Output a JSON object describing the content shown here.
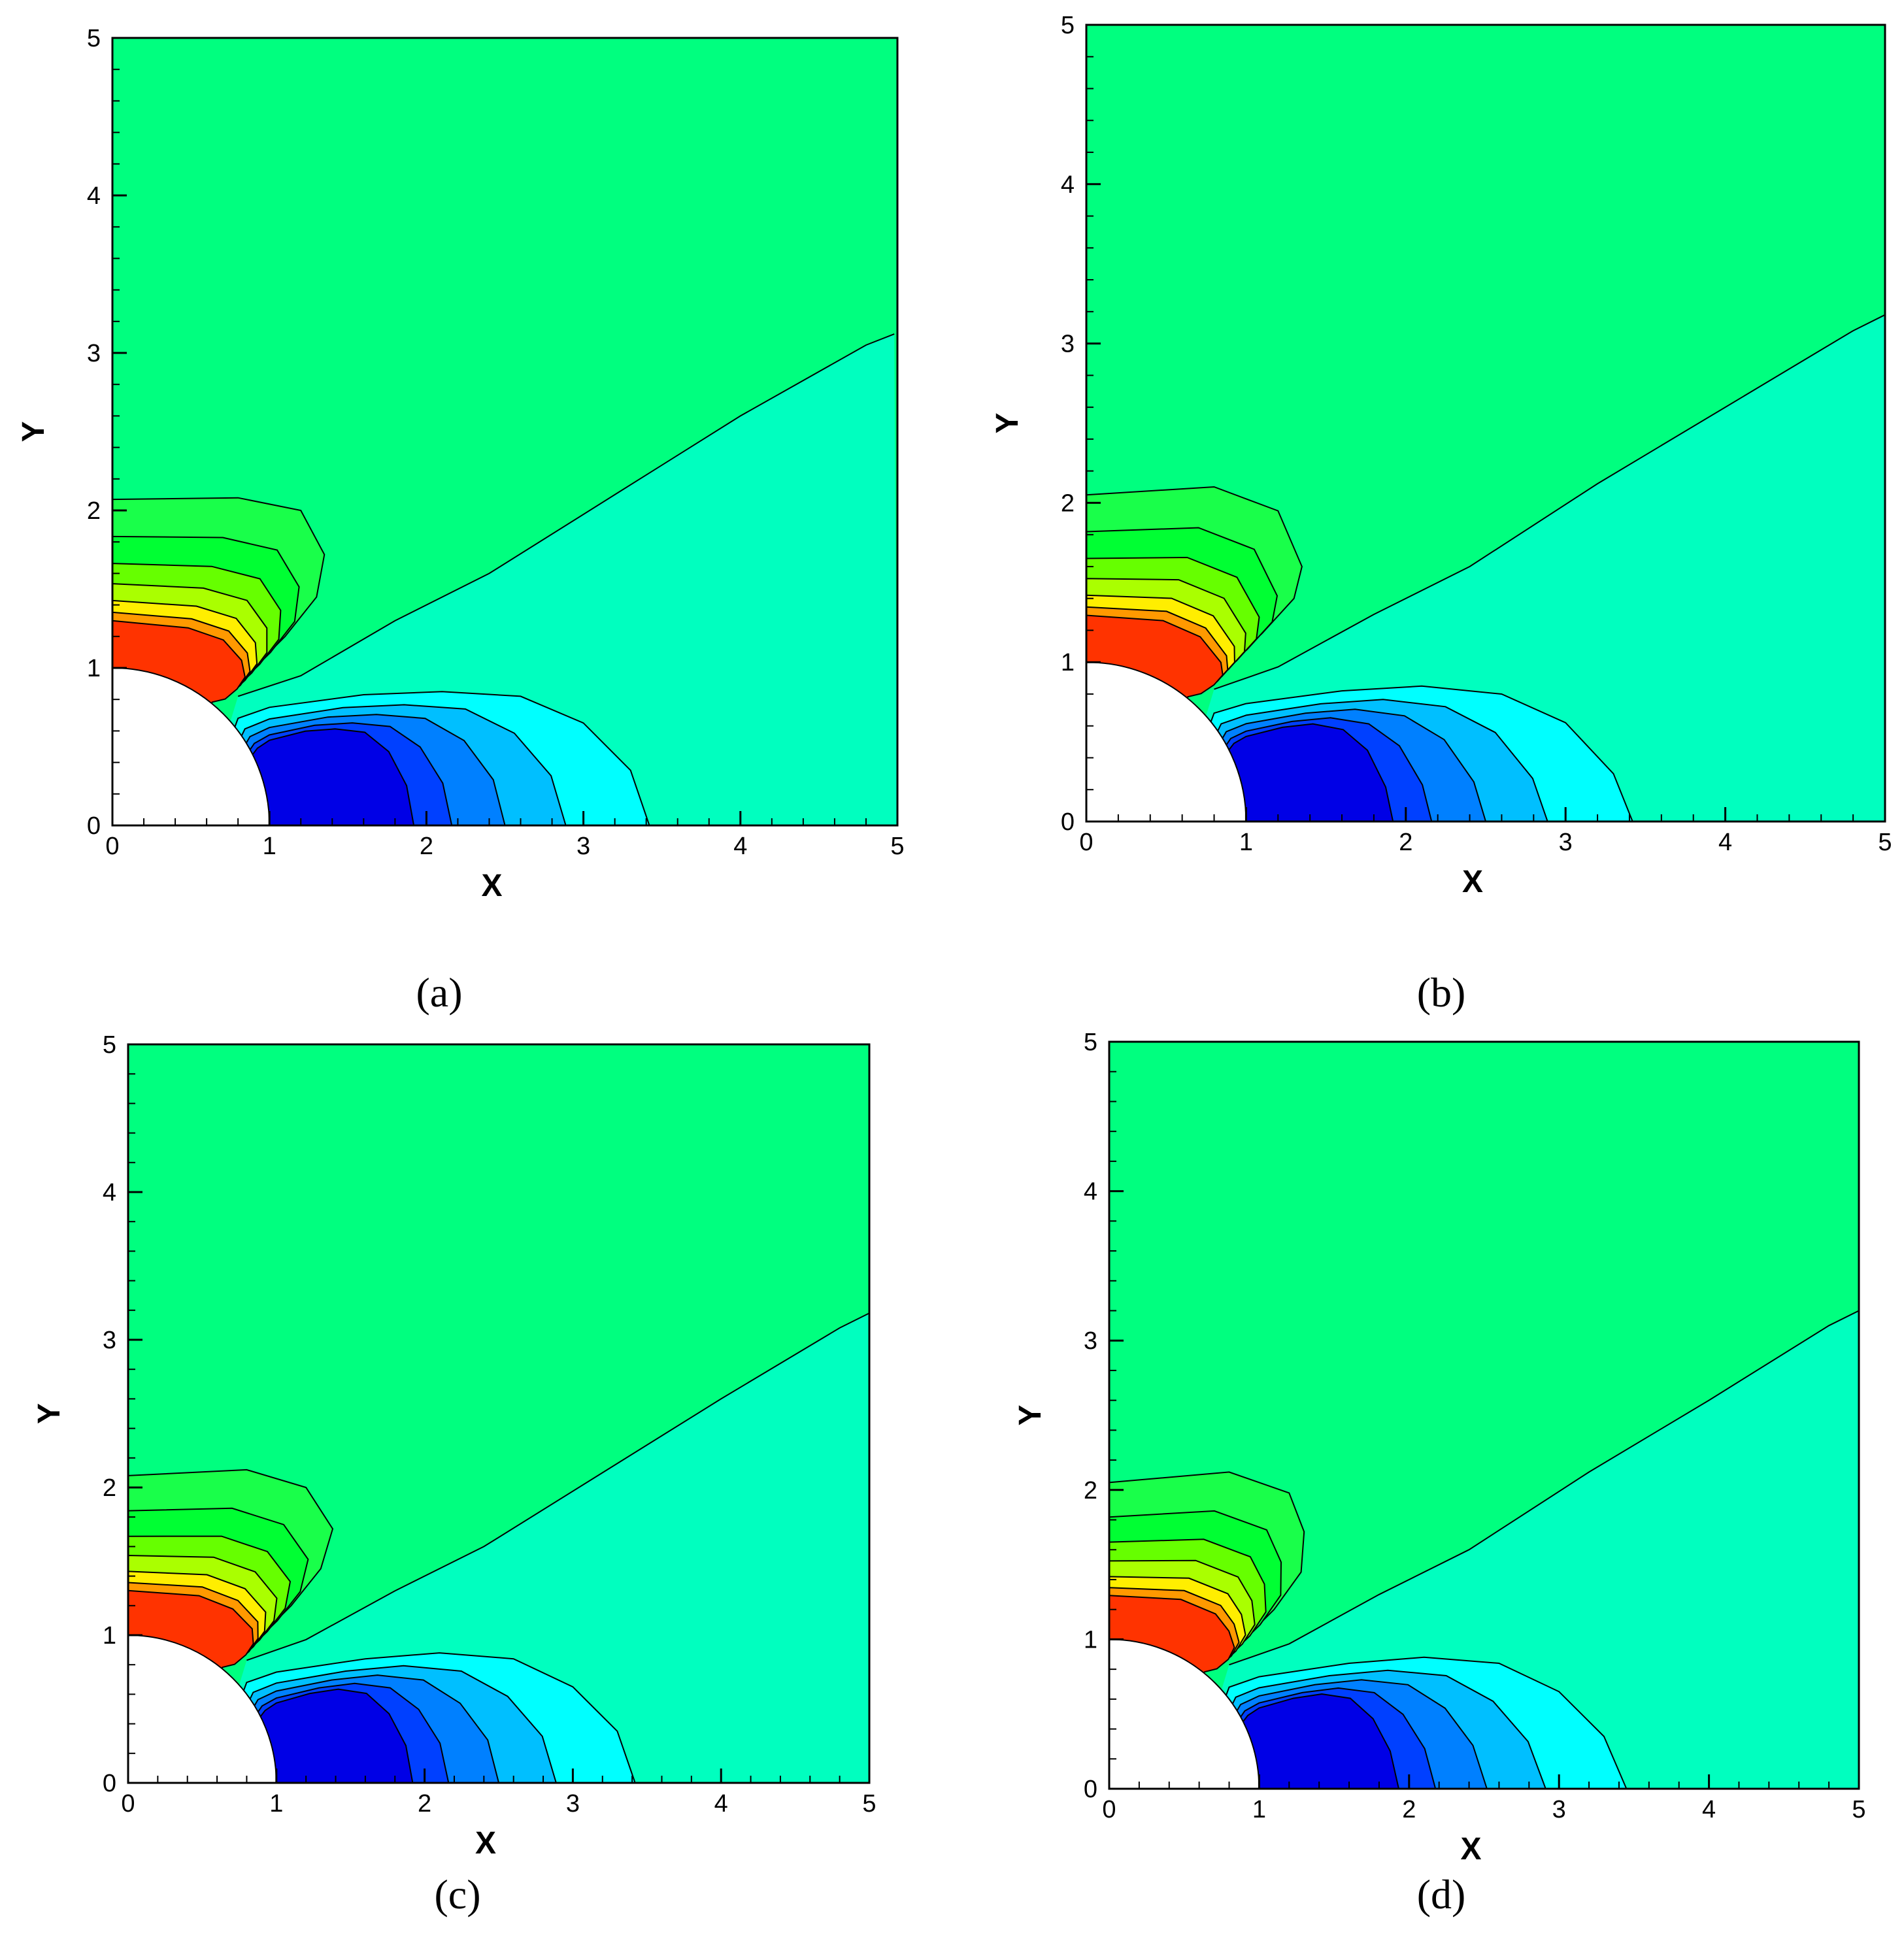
{
  "colors": {
    "level_far": "#00ff7f",
    "level_mid_green": "#19ff4a",
    "level_green": "#00ff33",
    "level_lime": "#66ff00",
    "level_yellow_green": "#aaff00",
    "level_yellow": "#ffee00",
    "level_orange": "#ff9900",
    "level_red": "#ff3300",
    "level_wake": "#00ffbf",
    "level_cyan": "#00ffff",
    "level_sky": "#00bfff",
    "level_azure": "#0080ff",
    "level_blue": "#0040ff",
    "level_deep_blue": "#0000e6",
    "body": "#ffffff",
    "contour_line": "#000000"
  },
  "chart_data": [
    {
      "type": "contour",
      "panel": "a",
      "caption": "(a)",
      "xlabel": "X",
      "ylabel": "Y",
      "xlim": [
        0,
        5
      ],
      "ylim": [
        0,
        5
      ],
      "xticks": [
        "0",
        "1",
        "2",
        "3",
        "4",
        "5"
      ],
      "yticks": [
        "0",
        "1",
        "2",
        "3",
        "4",
        "5"
      ],
      "obstacle": {
        "shape": "quarter-circle",
        "center": [
          0,
          0
        ],
        "radius": 1
      },
      "wake_boundary": [
        [
          4.98,
          3.12
        ],
        [
          4.8,
          3.05
        ],
        [
          4.0,
          2.6
        ],
        [
          3.2,
          2.1
        ],
        [
          2.4,
          1.6
        ],
        [
          1.8,
          1.3
        ],
        [
          1.2,
          0.95
        ],
        [
          0.8,
          0.82
        ]
      ],
      "cyan_region_edge": [
        [
          3.42,
          0.0
        ],
        [
          3.3,
          0.35
        ],
        [
          3.0,
          0.65
        ],
        [
          2.6,
          0.82
        ],
        [
          2.1,
          0.85
        ],
        [
          1.6,
          0.83
        ],
        [
          1.0,
          0.75
        ],
        [
          0.8,
          0.68
        ]
      ],
      "green_lobe_edge": [
        [
          0.0,
          2.07
        ],
        [
          0.8,
          2.08
        ],
        [
          1.2,
          2.0
        ],
        [
          1.35,
          1.72
        ],
        [
          1.3,
          1.45
        ],
        [
          1.1,
          1.2
        ],
        [
          0.85,
          0.95
        ],
        [
          0.65,
          0.8
        ]
      ]
    },
    {
      "type": "contour",
      "panel": "b",
      "caption": "(b)",
      "xlabel": "X",
      "ylabel": "Y",
      "xlim": [
        0,
        5
      ],
      "ylim": [
        0,
        5
      ],
      "xticks": [
        "0",
        "1",
        "2",
        "3",
        "4",
        "5"
      ],
      "yticks": [
        "0",
        "1",
        "2",
        "3",
        "4",
        "5"
      ],
      "obstacle": {
        "shape": "quarter-circle",
        "center": [
          0,
          0
        ],
        "radius": 1
      },
      "wake_boundary": [
        [
          5.0,
          3.18
        ],
        [
          4.8,
          3.08
        ],
        [
          4.0,
          2.6
        ],
        [
          3.2,
          2.12
        ],
        [
          2.4,
          1.6
        ],
        [
          1.8,
          1.3
        ],
        [
          1.2,
          0.97
        ],
        [
          0.8,
          0.83
        ]
      ],
      "cyan_region_edge": [
        [
          3.42,
          0.0
        ],
        [
          3.3,
          0.3
        ],
        [
          3.0,
          0.62
        ],
        [
          2.6,
          0.8
        ],
        [
          2.1,
          0.85
        ],
        [
          1.6,
          0.82
        ],
        [
          1.0,
          0.74
        ],
        [
          0.8,
          0.68
        ]
      ],
      "green_lobe_edge": [
        [
          0.0,
          2.05
        ],
        [
          0.8,
          2.1
        ],
        [
          1.2,
          1.95
        ],
        [
          1.35,
          1.6
        ],
        [
          1.3,
          1.4
        ],
        [
          1.1,
          1.18
        ],
        [
          0.85,
          0.95
        ],
        [
          0.65,
          0.8
        ]
      ]
    },
    {
      "type": "contour",
      "panel": "c",
      "caption": "(c)",
      "xlabel": "X",
      "ylabel": "Y",
      "xlim": [
        0,
        5
      ],
      "ylim": [
        0,
        5
      ],
      "xticks": [
        "0",
        "1",
        "2",
        "3",
        "4",
        "5"
      ],
      "yticks": [
        "0",
        "1",
        "2",
        "3",
        "4",
        "5"
      ],
      "obstacle": {
        "shape": "quarter-circle",
        "center": [
          0,
          0
        ],
        "radius": 1
      },
      "wake_boundary": [
        [
          5.0,
          3.18
        ],
        [
          4.8,
          3.08
        ],
        [
          4.0,
          2.6
        ],
        [
          3.2,
          2.1
        ],
        [
          2.4,
          1.6
        ],
        [
          1.8,
          1.3
        ],
        [
          1.2,
          0.97
        ],
        [
          0.8,
          0.83
        ]
      ],
      "cyan_region_edge": [
        [
          3.42,
          0.0
        ],
        [
          3.3,
          0.35
        ],
        [
          3.0,
          0.65
        ],
        [
          2.6,
          0.84
        ],
        [
          2.1,
          0.88
        ],
        [
          1.6,
          0.84
        ],
        [
          1.0,
          0.75
        ],
        [
          0.8,
          0.68
        ]
      ],
      "green_lobe_edge": [
        [
          0.0,
          2.08
        ],
        [
          0.8,
          2.12
        ],
        [
          1.2,
          2.0
        ],
        [
          1.38,
          1.72
        ],
        [
          1.3,
          1.45
        ],
        [
          1.1,
          1.2
        ],
        [
          0.85,
          0.95
        ],
        [
          0.65,
          0.8
        ]
      ]
    },
    {
      "type": "contour",
      "panel": "d",
      "caption": "(d)",
      "xlabel": "X",
      "ylabel": "Y",
      "xlim": [
        0,
        5
      ],
      "ylim": [
        0,
        5
      ],
      "xticks": [
        "0",
        "1",
        "2",
        "3",
        "4",
        "5"
      ],
      "yticks": [
        "0",
        "1",
        "2",
        "3",
        "4",
        "5"
      ],
      "obstacle": {
        "shape": "quarter-circle",
        "center": [
          0,
          0
        ],
        "radius": 1
      },
      "wake_boundary": [
        [
          5.0,
          3.2
        ],
        [
          4.8,
          3.1
        ],
        [
          4.0,
          2.6
        ],
        [
          3.2,
          2.12
        ],
        [
          2.4,
          1.6
        ],
        [
          1.8,
          1.3
        ],
        [
          1.2,
          0.97
        ],
        [
          0.8,
          0.83
        ]
      ],
      "cyan_region_edge": [
        [
          3.45,
          0.0
        ],
        [
          3.3,
          0.35
        ],
        [
          3.0,
          0.65
        ],
        [
          2.6,
          0.84
        ],
        [
          2.1,
          0.88
        ],
        [
          1.6,
          0.84
        ],
        [
          1.0,
          0.75
        ],
        [
          0.8,
          0.68
        ]
      ],
      "green_lobe_edge": [
        [
          0.0,
          2.05
        ],
        [
          0.8,
          2.12
        ],
        [
          1.2,
          1.98
        ],
        [
          1.3,
          1.72
        ],
        [
          1.28,
          1.45
        ],
        [
          1.1,
          1.2
        ],
        [
          0.85,
          0.95
        ],
        [
          0.65,
          0.8
        ]
      ]
    }
  ]
}
